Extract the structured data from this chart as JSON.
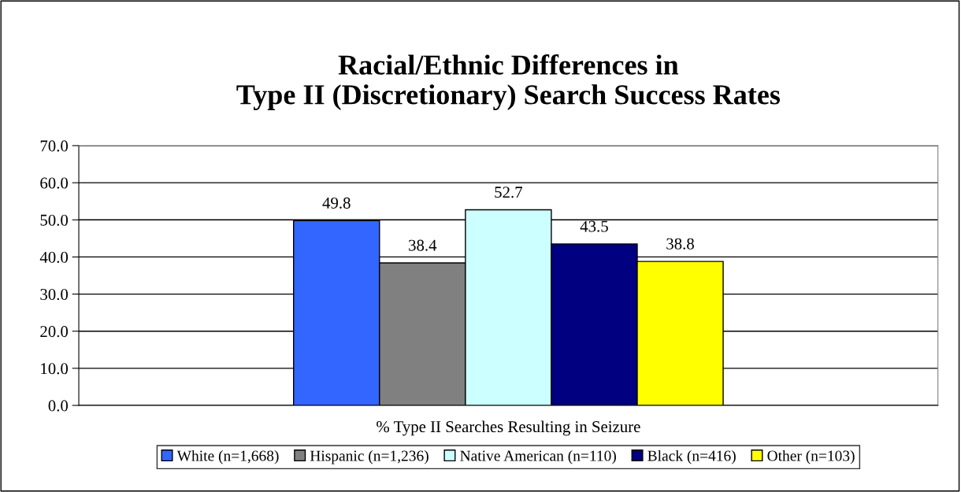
{
  "chart_data": {
    "type": "bar",
    "title": "Racial/Ethnic Differences in\nType II (Discretionary) Search Success Rates",
    "categories": [
      "% Type II Searches Resulting in Seizure"
    ],
    "series": [
      {
        "name": "White (n=1,668)",
        "color": "#3366ff",
        "values": [
          49.8
        ]
      },
      {
        "name": "Hispanic (n=1,236)",
        "color": "#808080",
        "values": [
          38.4
        ]
      },
      {
        "name": "Native American (n=110)",
        "color": "#ccffff",
        "values": [
          52.7
        ]
      },
      {
        "name": "Black (n=416)",
        "color": "#000080",
        "values": [
          43.5
        ]
      },
      {
        "name": "Other (n=103)",
        "color": "#ffff00",
        "values": [
          38.8
        ]
      }
    ],
    "ylim": [
      0,
      70
    ],
    "yticks": [
      {
        "value": 0,
        "label": "0.0"
      },
      {
        "value": 10,
        "label": "10.0"
      },
      {
        "value": 20,
        "label": "20.0"
      },
      {
        "value": 30,
        "label": "30.0"
      },
      {
        "value": 40,
        "label": "40.0"
      },
      {
        "value": 50,
        "label": "50.0"
      },
      {
        "value": 60,
        "label": "60.0"
      },
      {
        "value": 70,
        "label": "70.0"
      }
    ],
    "grid": "y",
    "legend": "bottom",
    "data_labels": true
  }
}
